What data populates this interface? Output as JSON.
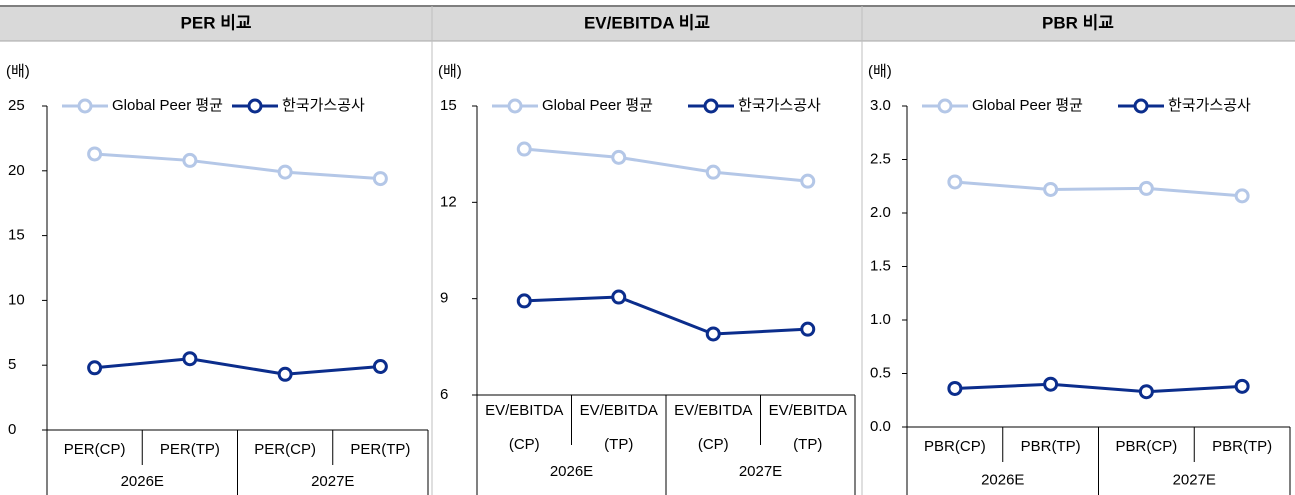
{
  "chart_data": [
    {
      "type": "line",
      "title": "PER 비교",
      "unit": "(배)",
      "categories": [
        [
          "PER(CP)"
        ],
        [
          "PER(TP)"
        ],
        [
          "PER(CP)"
        ],
        [
          "PER(TP)"
        ]
      ],
      "groups": [
        "2026E",
        "2027E"
      ],
      "ylim": [
        0,
        25
      ],
      "yticks": [
        0,
        5,
        10,
        15,
        20,
        25
      ],
      "series": [
        {
          "name": "Global Peer 평균",
          "color": "#b4c7e7",
          "values": [
            21.3,
            20.8,
            19.9,
            19.4
          ]
        },
        {
          "name": "한국가스공사",
          "color": "#0b2d8c",
          "values": [
            4.8,
            5.5,
            4.3,
            4.9
          ]
        }
      ]
    },
    {
      "type": "line",
      "title": "EV/EBITDA 비교",
      "unit": "(배)",
      "categories": [
        [
          "EV/EBITDA",
          "(CP)"
        ],
        [
          "EV/EBITDA",
          "(TP)"
        ],
        [
          "EV/EBITDA",
          "(CP)"
        ],
        [
          "EV/EBITDA",
          "(TP)"
        ]
      ],
      "groups": [
        "2026E",
        "2027E"
      ],
      "ylim": [
        6,
        15
      ],
      "yticks": [
        6,
        9,
        12,
        15
      ],
      "series": [
        {
          "name": "Global Peer 평균",
          "color": "#b4c7e7",
          "values": [
            13.66,
            13.4,
            12.94,
            12.66
          ]
        },
        {
          "name": "한국가스공사",
          "color": "#0b2d8c",
          "values": [
            8.93,
            9.05,
            7.9,
            8.05
          ]
        }
      ]
    },
    {
      "type": "line",
      "title": "PBR 비교",
      "unit": "(배)",
      "categories": [
        [
          "PBR(CP)"
        ],
        [
          "PBR(TP)"
        ],
        [
          "PBR(CP)"
        ],
        [
          "PBR(TP)"
        ]
      ],
      "groups": [
        "2026E",
        "2027E"
      ],
      "ylim": [
        0,
        3
      ],
      "yticks": [
        {
          "value": 0,
          "label": "0.0"
        },
        0.5,
        {
          "value": 1,
          "label": "1.0"
        },
        1.5,
        {
          "value": 2,
          "label": "2.0"
        },
        2.5,
        {
          "value": 3,
          "label": "3.0"
        }
      ],
      "series": [
        {
          "name": "Global Peer 평균",
          "color": "#b4c7e7",
          "values": [
            2.29,
            2.22,
            2.23,
            2.16
          ]
        },
        {
          "name": "한국가스공사",
          "color": "#0b2d8c",
          "values": [
            0.36,
            0.4,
            0.33,
            0.38
          ]
        }
      ]
    }
  ]
}
